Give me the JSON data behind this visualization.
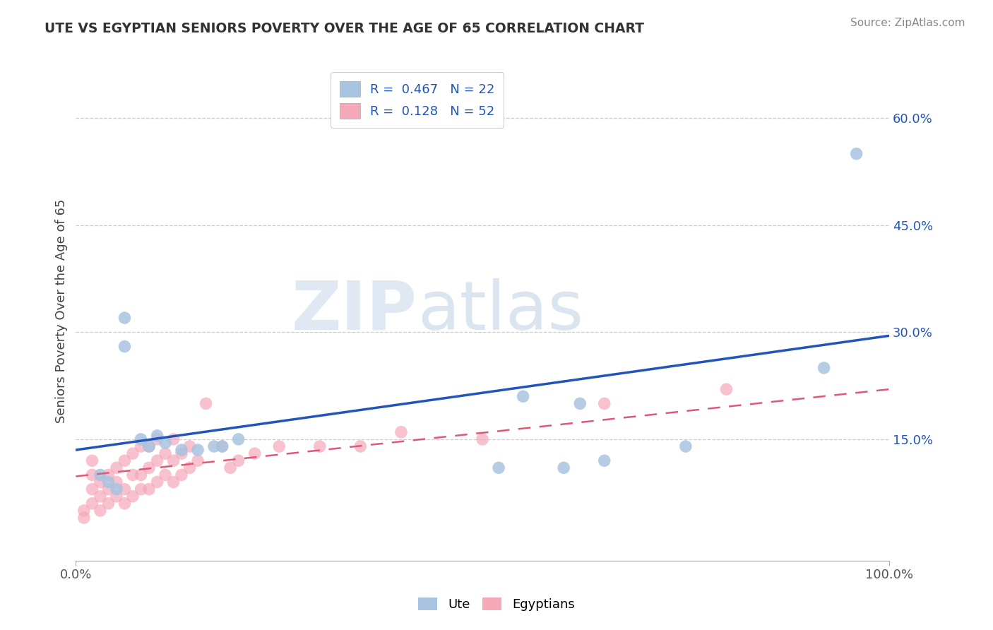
{
  "title": "UTE VS EGYPTIAN SENIORS POVERTY OVER THE AGE OF 65 CORRELATION CHART",
  "source": "Source: ZipAtlas.com",
  "ylabel": "Seniors Poverty Over the Age of 65",
  "xlim": [
    0,
    1.0
  ],
  "ylim": [
    -0.02,
    0.68
  ],
  "xticks": [
    0.0,
    1.0
  ],
  "xtick_labels": [
    "0.0%",
    "100.0%"
  ],
  "yticks": [
    0.15,
    0.3,
    0.45,
    0.6
  ],
  "ytick_labels": [
    "15.0%",
    "30.0%",
    "45.0%",
    "60.0%"
  ],
  "legend_labels": [
    "Ute",
    "Egyptians"
  ],
  "ute_R": "0.467",
  "ute_N": "22",
  "egyptian_R": "0.128",
  "egyptian_N": "52",
  "ute_color": "#a8c4e0",
  "egyptian_color": "#f4a8b8",
  "ute_line_color": "#2255bb",
  "egyptian_line_color": "#e05878",
  "watermark_zip": "ZIP",
  "watermark_atlas": "atlas",
  "background_color": "#ffffff",
  "grid_color": "#cccccc",
  "ute_x": [
    0.03,
    0.04,
    0.05,
    0.06,
    0.06,
    0.08,
    0.09,
    0.1,
    0.11,
    0.13,
    0.15,
    0.17,
    0.18,
    0.2,
    0.52,
    0.55,
    0.62,
    0.65,
    0.75,
    0.6,
    0.92,
    0.96
  ],
  "ute_y": [
    0.1,
    0.09,
    0.08,
    0.32,
    0.28,
    0.15,
    0.14,
    0.155,
    0.145,
    0.135,
    0.135,
    0.14,
    0.14,
    0.15,
    0.11,
    0.21,
    0.2,
    0.12,
    0.14,
    0.11,
    0.25,
    0.55
  ],
  "egyptian_x": [
    0.01,
    0.01,
    0.02,
    0.02,
    0.02,
    0.02,
    0.03,
    0.03,
    0.03,
    0.04,
    0.04,
    0.04,
    0.05,
    0.05,
    0.05,
    0.06,
    0.06,
    0.06,
    0.07,
    0.07,
    0.07,
    0.08,
    0.08,
    0.08,
    0.09,
    0.09,
    0.09,
    0.1,
    0.1,
    0.1,
    0.11,
    0.11,
    0.12,
    0.12,
    0.12,
    0.13,
    0.13,
    0.14,
    0.14,
    0.15,
    0.16,
    0.18,
    0.19,
    0.2,
    0.22,
    0.25,
    0.3,
    0.35,
    0.4,
    0.5,
    0.65,
    0.8
  ],
  "egyptian_y": [
    0.04,
    0.05,
    0.06,
    0.08,
    0.1,
    0.12,
    0.05,
    0.07,
    0.09,
    0.06,
    0.08,
    0.1,
    0.07,
    0.09,
    0.11,
    0.06,
    0.08,
    0.12,
    0.07,
    0.1,
    0.13,
    0.08,
    0.1,
    0.14,
    0.08,
    0.11,
    0.14,
    0.09,
    0.12,
    0.15,
    0.1,
    0.13,
    0.09,
    0.12,
    0.15,
    0.1,
    0.13,
    0.11,
    0.14,
    0.12,
    0.2,
    0.14,
    0.11,
    0.12,
    0.13,
    0.14,
    0.14,
    0.14,
    0.16,
    0.15,
    0.2,
    0.22
  ]
}
